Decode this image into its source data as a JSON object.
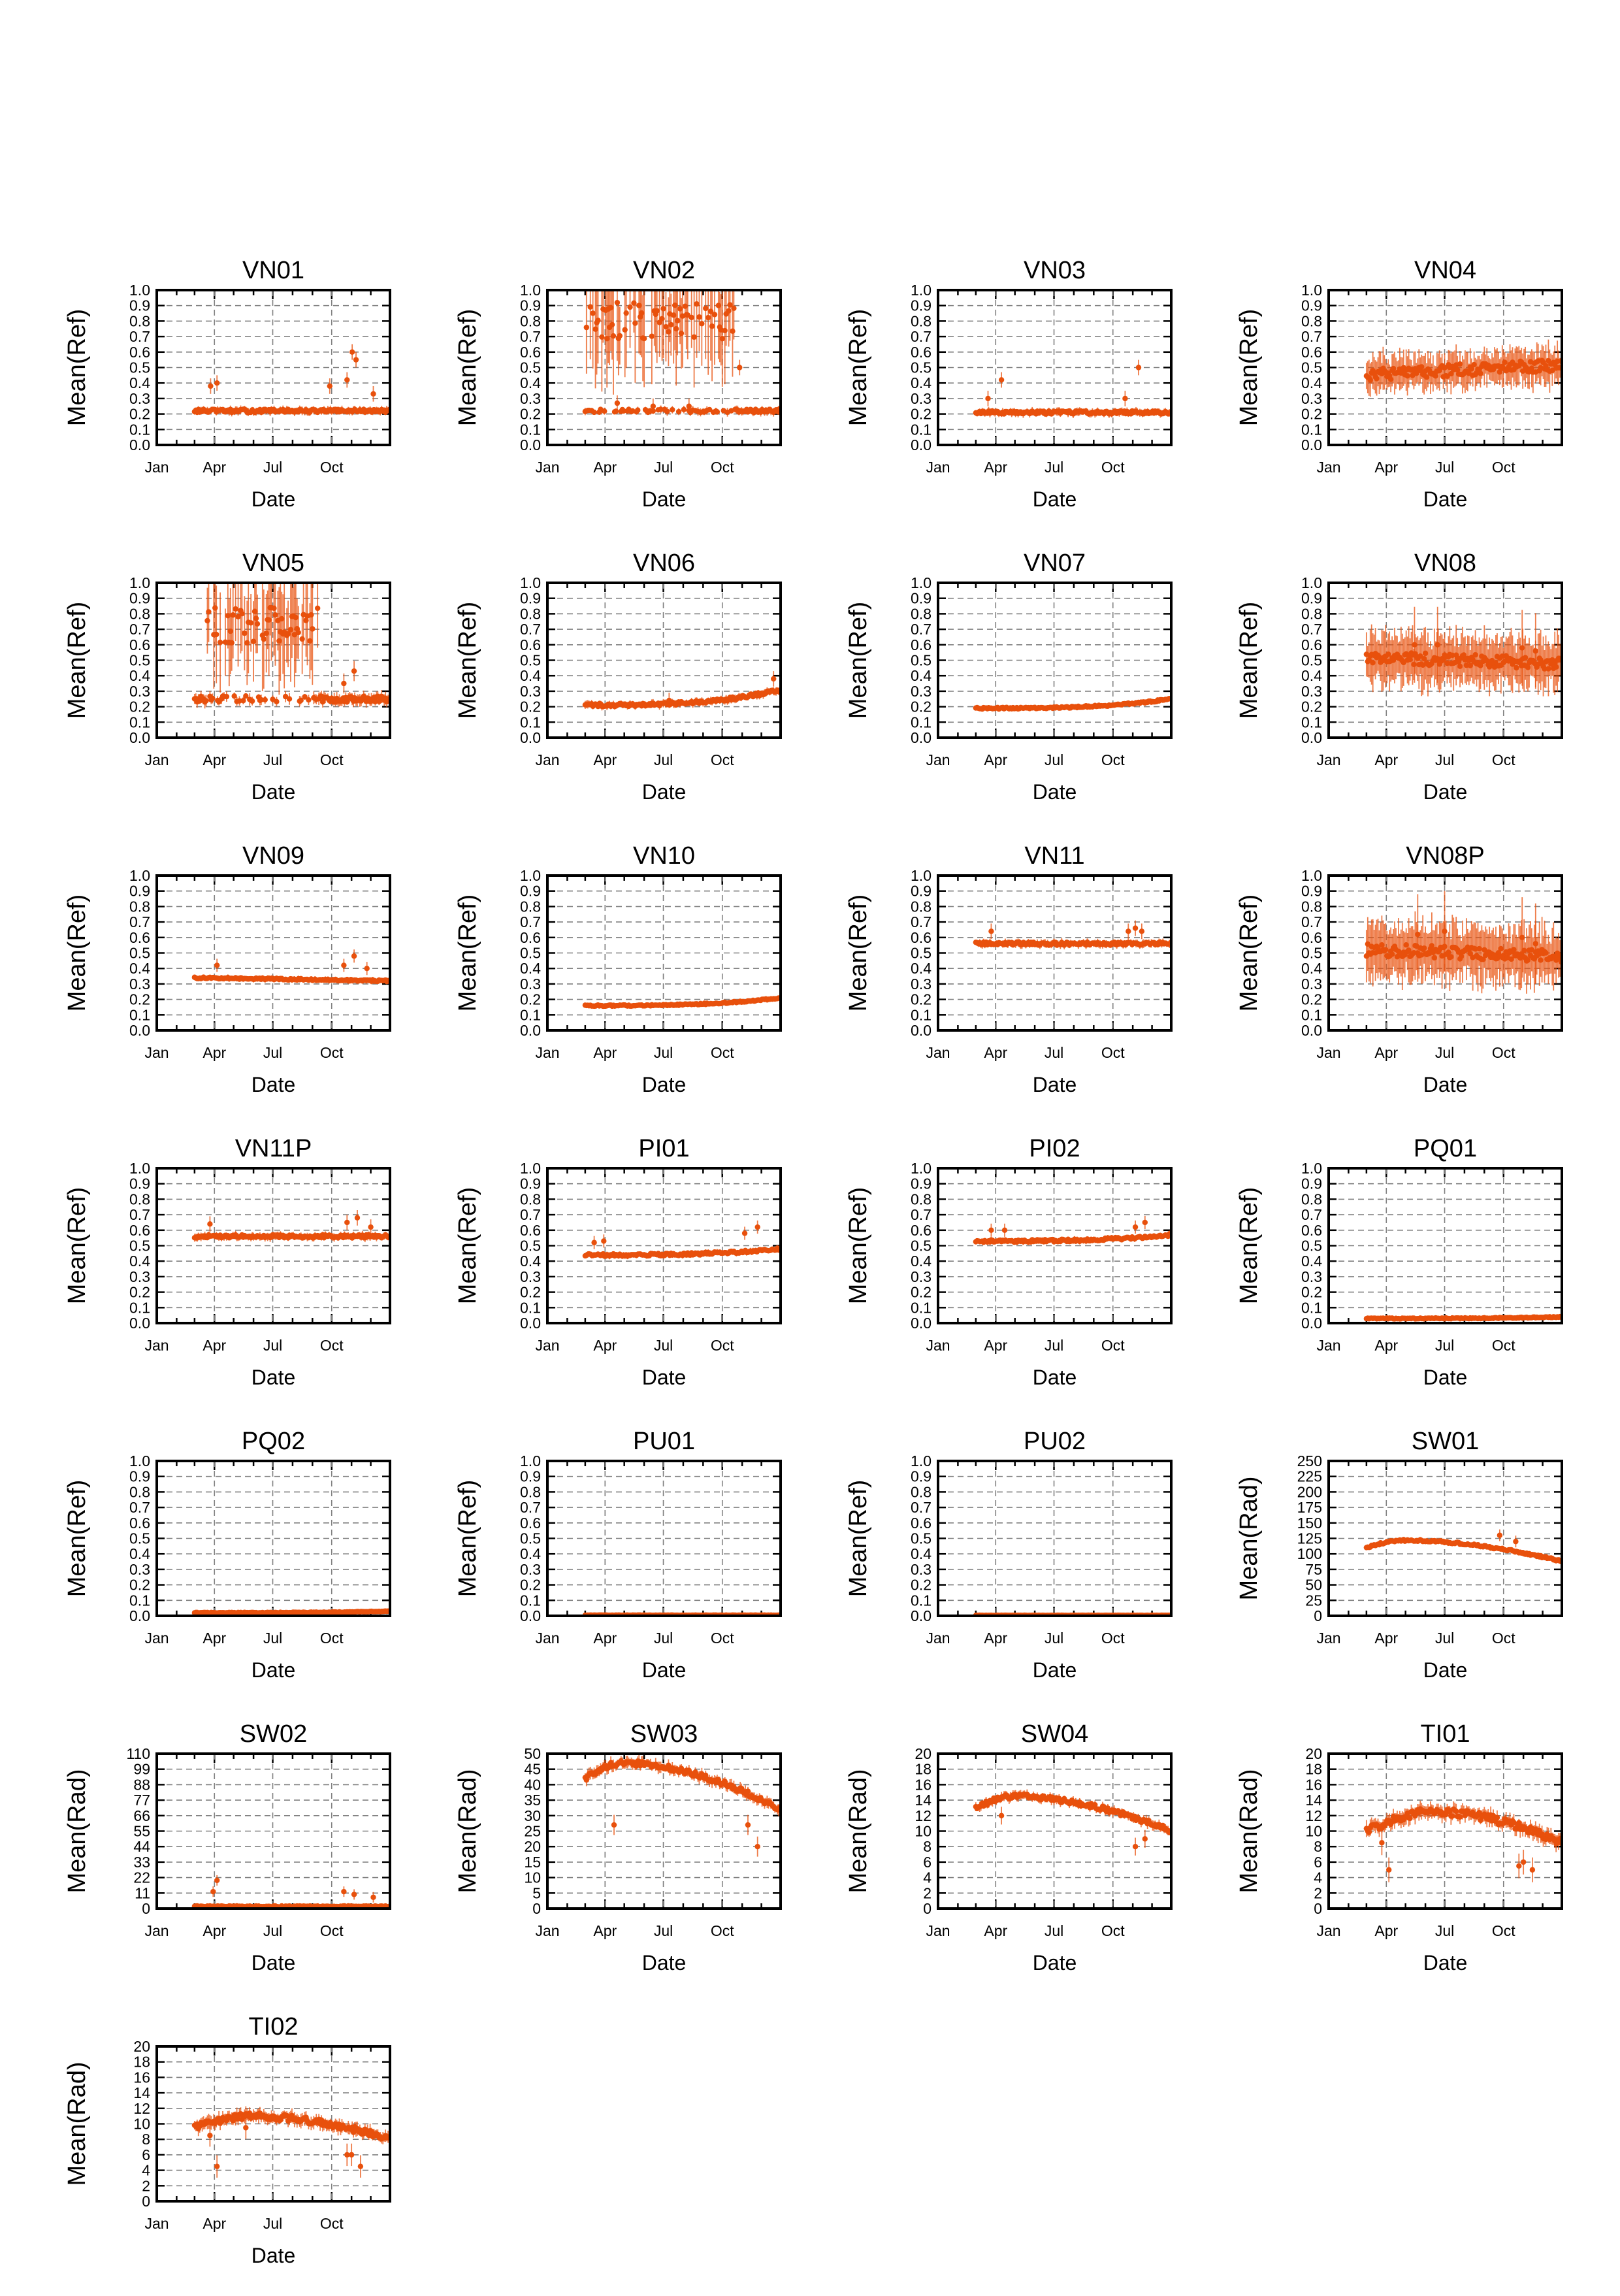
{
  "figure": {
    "xlabel": "Date",
    "x_ticks": [
      "Jan",
      "Apr",
      "Jul",
      "Oct"
    ],
    "x_tick_dates": [
      "2013-01-01",
      "2013-04-01",
      "2013-07-01",
      "2013-10-01"
    ],
    "series_color": "#e8500c",
    "grid": true,
    "grid_style": "dashed",
    "marker": "dot with vertical error bar"
  },
  "chart_data": [
    {
      "type": "scatter",
      "title": "VN01",
      "xlabel": "Date",
      "ylabel": "Mean(Ref)",
      "ylim": [
        0,
        1.0
      ],
      "xlim": [
        "2013-01-01",
        "2013-12-31"
      ],
      "series": [
        {
          "kind": "flat",
          "x_start": "2013-03-01",
          "x_end": "2013-12-31",
          "base": 0.22,
          "end": 0.22,
          "jitter": 0.01,
          "err": 0.02,
          "outliers": [
            {
              "x": "2013-03-26",
              "y": 0.38
            },
            {
              "x": "2013-04-05",
              "y": 0.4
            },
            {
              "x": "2013-09-28",
              "y": 0.38
            },
            {
              "x": "2013-10-25",
              "y": 0.42
            },
            {
              "x": "2013-11-02",
              "y": 0.6
            },
            {
              "x": "2013-11-08",
              "y": 0.55
            },
            {
              "x": "2013-12-05",
              "y": 0.33
            }
          ]
        }
      ]
    },
    {
      "type": "scatter",
      "title": "VN02",
      "xlabel": "Date",
      "ylabel": "Mean(Ref)",
      "ylim": [
        0,
        1.0
      ],
      "xlim": [
        "2013-01-01",
        "2013-12-31"
      ],
      "series": [
        {
          "kind": "band",
          "x_start": "2013-03-01",
          "x_end": "2013-12-31",
          "base": 0.22,
          "end": 0.22,
          "jitter": 0.01,
          "err": 0.02,
          "band_start": "2013-03-01",
          "band_end": "2013-10-20",
          "band_center": 0.8,
          "band_spread": 0.12,
          "band_err": 0.3,
          "outliers": [
            {
              "x": "2013-04-20",
              "y": 0.27
            },
            {
              "x": "2013-06-15",
              "y": 0.25
            },
            {
              "x": "2013-08-10",
              "y": 0.25
            },
            {
              "x": "2013-10-28",
              "y": 0.5
            }
          ]
        }
      ]
    },
    {
      "type": "scatter",
      "title": "VN03",
      "xlabel": "Date",
      "ylabel": "Mean(Ref)",
      "ylim": [
        0,
        1.0
      ],
      "xlim": [
        "2013-01-01",
        "2013-12-31"
      ],
      "series": [
        {
          "kind": "flat",
          "x_start": "2013-03-01",
          "x_end": "2013-12-31",
          "base": 0.21,
          "end": 0.21,
          "jitter": 0.01,
          "err": 0.02,
          "outliers": [
            {
              "x": "2013-03-20",
              "y": 0.3
            },
            {
              "x": "2013-04-10",
              "y": 0.42
            },
            {
              "x": "2013-10-20",
              "y": 0.3
            },
            {
              "x": "2013-11-10",
              "y": 0.5
            }
          ]
        }
      ]
    },
    {
      "type": "scatter",
      "title": "VN04",
      "xlabel": "Date",
      "ylabel": "Mean(Ref)",
      "ylim": [
        0,
        1.0
      ],
      "xlim": [
        "2013-01-01",
        "2013-12-31"
      ],
      "series": [
        {
          "kind": "flat",
          "x_start": "2013-03-01",
          "x_end": "2013-12-31",
          "base": 0.45,
          "end": 0.52,
          "jitter": 0.04,
          "err": 0.1,
          "outliers": []
        }
      ]
    },
    {
      "type": "scatter",
      "title": "VN05",
      "xlabel": "Date",
      "ylabel": "Mean(Ref)",
      "ylim": [
        0,
        1.0
      ],
      "xlim": [
        "2013-01-01",
        "2013-12-31"
      ],
      "series": [
        {
          "kind": "band",
          "x_start": "2013-03-01",
          "x_end": "2013-12-31",
          "base": 0.25,
          "end": 0.25,
          "jitter": 0.02,
          "err": 0.03,
          "band_start": "2013-03-20",
          "band_end": "2013-09-10",
          "band_center": 0.72,
          "band_spread": 0.12,
          "band_err": 0.28,
          "outliers": [
            {
              "x": "2013-10-20",
              "y": 0.35
            },
            {
              "x": "2013-11-05",
              "y": 0.43
            }
          ]
        }
      ]
    },
    {
      "type": "scatter",
      "title": "VN06",
      "xlabel": "Date",
      "ylabel": "Mean(Ref)",
      "ylim": [
        0,
        1.0
      ],
      "xlim": [
        "2013-01-01",
        "2013-12-31"
      ],
      "series": [
        {
          "kind": "rise",
          "x_start": "2013-03-01",
          "x_end": "2013-12-31",
          "base": 0.21,
          "end": 0.31,
          "jitter": 0.01,
          "err": 0.02,
          "outliers": [
            {
              "x": "2013-07-10",
              "y": 0.24
            },
            {
              "x": "2013-12-20",
              "y": 0.38
            }
          ]
        }
      ]
    },
    {
      "type": "scatter",
      "title": "VN07",
      "xlabel": "Date",
      "ylabel": "Mean(Ref)",
      "ylim": [
        0,
        1.0
      ],
      "xlim": [
        "2013-01-01",
        "2013-12-31"
      ],
      "series": [
        {
          "kind": "rise",
          "x_start": "2013-03-01",
          "x_end": "2013-12-31",
          "base": 0.19,
          "end": 0.25,
          "jitter": 0.005,
          "err": 0.01,
          "outliers": []
        }
      ]
    },
    {
      "type": "scatter",
      "title": "VN08",
      "xlabel": "Date",
      "ylabel": "Mean(Ref)",
      "ylim": [
        0,
        1.0
      ],
      "xlim": [
        "2013-01-01",
        "2013-12-31"
      ],
      "series": [
        {
          "kind": "flat",
          "x_start": "2013-03-01",
          "x_end": "2013-12-31",
          "base": 0.52,
          "end": 0.48,
          "jitter": 0.04,
          "err": 0.15,
          "outliers": [
            {
              "x": "2013-05-15",
              "y": 0.6
            },
            {
              "x": "2013-06-20",
              "y": 0.6
            },
            {
              "x": "2013-10-30",
              "y": 0.58
            },
            {
              "x": "2013-11-20",
              "y": 0.56
            }
          ]
        }
      ]
    },
    {
      "type": "scatter",
      "title": "VN09",
      "xlabel": "Date",
      "ylabel": "Mean(Ref)",
      "ylim": [
        0,
        1.0
      ],
      "xlim": [
        "2013-01-01",
        "2013-12-31"
      ],
      "series": [
        {
          "kind": "flat",
          "x_start": "2013-03-01",
          "x_end": "2013-12-31",
          "base": 0.34,
          "end": 0.32,
          "jitter": 0.005,
          "err": 0.015,
          "outliers": [
            {
              "x": "2013-04-05",
              "y": 0.42
            },
            {
              "x": "2013-10-20",
              "y": 0.42
            },
            {
              "x": "2013-11-05",
              "y": 0.48
            },
            {
              "x": "2013-11-25",
              "y": 0.4
            }
          ]
        }
      ]
    },
    {
      "type": "scatter",
      "title": "VN10",
      "xlabel": "Date",
      "ylabel": "Mean(Ref)",
      "ylim": [
        0,
        1.0
      ],
      "xlim": [
        "2013-01-01",
        "2013-12-31"
      ],
      "series": [
        {
          "kind": "rise",
          "x_start": "2013-03-01",
          "x_end": "2013-12-31",
          "base": 0.16,
          "end": 0.21,
          "jitter": 0.004,
          "err": 0.008,
          "outliers": []
        }
      ]
    },
    {
      "type": "scatter",
      "title": "VN11",
      "xlabel": "Date",
      "ylabel": "Mean(Ref)",
      "ylim": [
        0,
        1.0
      ],
      "xlim": [
        "2013-01-01",
        "2013-12-31"
      ],
      "series": [
        {
          "kind": "flat",
          "x_start": "2013-03-01",
          "x_end": "2013-12-31",
          "base": 0.56,
          "end": 0.56,
          "jitter": 0.01,
          "err": 0.02,
          "outliers": [
            {
              "x": "2013-03-25",
              "y": 0.64
            },
            {
              "x": "2013-10-25",
              "y": 0.64
            },
            {
              "x": "2013-11-05",
              "y": 0.66
            },
            {
              "x": "2013-11-15",
              "y": 0.64
            }
          ]
        }
      ]
    },
    {
      "type": "scatter",
      "title": "VN08P",
      "xlabel": "Date",
      "ylabel": "Mean(Ref)",
      "ylim": [
        0,
        1.0
      ],
      "xlim": [
        "2013-01-01",
        "2013-12-31"
      ],
      "series": [
        {
          "kind": "flat",
          "x_start": "2013-03-01",
          "x_end": "2013-12-31",
          "base": 0.52,
          "end": 0.48,
          "jitter": 0.04,
          "err": 0.16,
          "outliers": [
            {
              "x": "2013-05-20",
              "y": 0.62
            },
            {
              "x": "2013-07-01",
              "y": 0.64
            },
            {
              "x": "2013-10-30",
              "y": 0.6
            },
            {
              "x": "2013-11-20",
              "y": 0.56
            }
          ]
        }
      ]
    },
    {
      "type": "scatter",
      "title": "VN11P",
      "xlabel": "Date",
      "ylabel": "Mean(Ref)",
      "ylim": [
        0,
        1.0
      ],
      "xlim": [
        "2013-01-01",
        "2013-12-31"
      ],
      "series": [
        {
          "kind": "flat",
          "x_start": "2013-03-01",
          "x_end": "2013-12-31",
          "base": 0.56,
          "end": 0.56,
          "jitter": 0.01,
          "err": 0.02,
          "outliers": [
            {
              "x": "2013-03-25",
              "y": 0.64
            },
            {
              "x": "2013-10-25",
              "y": 0.65
            },
            {
              "x": "2013-11-10",
              "y": 0.68
            },
            {
              "x": "2013-12-01",
              "y": 0.62
            }
          ]
        }
      ]
    },
    {
      "type": "scatter",
      "title": "PI01",
      "xlabel": "Date",
      "ylabel": "Mean(Ref)",
      "ylim": [
        0,
        1.0
      ],
      "xlim": [
        "2013-01-01",
        "2013-12-31"
      ],
      "series": [
        {
          "kind": "rise",
          "x_start": "2013-03-01",
          "x_end": "2013-12-31",
          "base": 0.44,
          "end": 0.48,
          "jitter": 0.008,
          "err": 0.015,
          "outliers": [
            {
              "x": "2013-03-15",
              "y": 0.52
            },
            {
              "x": "2013-03-30",
              "y": 0.53
            },
            {
              "x": "2013-11-05",
              "y": 0.58
            },
            {
              "x": "2013-11-25",
              "y": 0.62
            }
          ]
        }
      ]
    },
    {
      "type": "scatter",
      "title": "PI02",
      "xlabel": "Date",
      "ylabel": "Mean(Ref)",
      "ylim": [
        0,
        1.0
      ],
      "xlim": [
        "2013-01-01",
        "2013-12-31"
      ],
      "series": [
        {
          "kind": "rise",
          "x_start": "2013-03-01",
          "x_end": "2013-12-31",
          "base": 0.53,
          "end": 0.57,
          "jitter": 0.008,
          "err": 0.015,
          "outliers": [
            {
              "x": "2013-03-25",
              "y": 0.6
            },
            {
              "x": "2013-04-15",
              "y": 0.6
            },
            {
              "x": "2013-11-05",
              "y": 0.62
            },
            {
              "x": "2013-11-20",
              "y": 0.65
            }
          ]
        }
      ]
    },
    {
      "type": "scatter",
      "title": "PQ01",
      "xlabel": "Date",
      "ylabel": "Mean(Ref)",
      "ylim": [
        0,
        1.0
      ],
      "xlim": [
        "2013-01-01",
        "2013-12-31"
      ],
      "series": [
        {
          "kind": "rise",
          "x_start": "2013-03-01",
          "x_end": "2013-12-31",
          "base": 0.03,
          "end": 0.04,
          "jitter": 0.003,
          "err": 0.005,
          "outliers": []
        }
      ]
    },
    {
      "type": "scatter",
      "title": "PQ02",
      "xlabel": "Date",
      "ylabel": "Mean(Ref)",
      "ylim": [
        0,
        1.0
      ],
      "xlim": [
        "2013-01-01",
        "2013-12-31"
      ],
      "series": [
        {
          "kind": "rise",
          "x_start": "2013-03-01",
          "x_end": "2013-12-31",
          "base": 0.02,
          "end": 0.03,
          "jitter": 0.002,
          "err": 0.004,
          "outliers": []
        }
      ]
    },
    {
      "type": "scatter",
      "title": "PU01",
      "xlabel": "Date",
      "ylabel": "Mean(Ref)",
      "ylim": [
        0,
        1.0
      ],
      "xlim": [
        "2013-01-01",
        "2013-12-31"
      ],
      "series": [
        {
          "kind": "flat",
          "x_start": "2013-03-01",
          "x_end": "2013-12-31",
          "base": 0.004,
          "end": 0.004,
          "jitter": 0.001,
          "err": 0.002,
          "outliers": []
        }
      ]
    },
    {
      "type": "scatter",
      "title": "PU02",
      "xlabel": "Date",
      "ylabel": "Mean(Ref)",
      "ylim": [
        0,
        1.0
      ],
      "xlim": [
        "2013-01-01",
        "2013-12-31"
      ],
      "series": [
        {
          "kind": "flat",
          "x_start": "2013-03-01",
          "x_end": "2013-12-31",
          "base": 0.003,
          "end": 0.003,
          "jitter": 0.001,
          "err": 0.002,
          "outliers": []
        }
      ]
    },
    {
      "type": "scatter",
      "title": "SW01",
      "xlabel": "Date",
      "ylabel": "Mean(Rad)",
      "ylim": [
        0,
        250
      ],
      "xlim": [
        "2013-01-01",
        "2013-12-31"
      ],
      "series": [
        {
          "kind": "hump",
          "x_start": "2013-03-01",
          "x_end": "2013-12-31",
          "base": 110,
          "peak": 122,
          "peak_at": 0.2,
          "end": 88,
          "jitter": 1.5,
          "err": 3,
          "outliers": [
            {
              "x": "2013-09-25",
              "y": 130
            },
            {
              "x": "2013-10-20",
              "y": 120
            }
          ]
        }
      ]
    },
    {
      "type": "scatter",
      "title": "SW02",
      "xlabel": "Date",
      "ylabel": "Mean(Rad)",
      "ylim": [
        0,
        110
      ],
      "xlim": [
        "2013-01-01",
        "2013-12-31"
      ],
      "series": [
        {
          "kind": "flat",
          "x_start": "2013-03-01",
          "x_end": "2013-12-31",
          "base": 1.5,
          "end": 1.5,
          "jitter": 0.4,
          "err": 1,
          "outliers": [
            {
              "x": "2013-04-05",
              "y": 20
            },
            {
              "x": "2013-03-30",
              "y": 12
            },
            {
              "x": "2013-10-20",
              "y": 12
            },
            {
              "x": "2013-11-05",
              "y": 10
            },
            {
              "x": "2013-12-05",
              "y": 8
            }
          ]
        }
      ]
    },
    {
      "type": "scatter",
      "title": "SW03",
      "xlabel": "Date",
      "ylabel": "Mean(Rad)",
      "ylim": [
        0,
        50
      ],
      "xlim": [
        "2013-01-01",
        "2013-12-31"
      ],
      "series": [
        {
          "kind": "hump",
          "x_start": "2013-03-01",
          "x_end": "2013-12-31",
          "base": 42,
          "peak": 47,
          "peak_at": 0.2,
          "end": 32,
          "jitter": 0.8,
          "err": 1.5,
          "outliers": [
            {
              "x": "2013-04-15",
              "y": 27
            },
            {
              "x": "2013-11-10",
              "y": 27
            },
            {
              "x": "2013-11-25",
              "y": 20
            }
          ]
        }
      ]
    },
    {
      "type": "scatter",
      "title": "SW04",
      "xlabel": "Date",
      "ylabel": "Mean(Rad)",
      "ylim": [
        0,
        20
      ],
      "xlim": [
        "2013-01-01",
        "2013-12-31"
      ],
      "series": [
        {
          "kind": "hump",
          "x_start": "2013-03-01",
          "x_end": "2013-12-31",
          "base": 13,
          "peak": 14.5,
          "peak_at": 0.2,
          "end": 10,
          "jitter": 0.3,
          "err": 0.5,
          "outliers": [
            {
              "x": "2013-04-10",
              "y": 12
            },
            {
              "x": "2013-11-05",
              "y": 8
            },
            {
              "x": "2013-11-20",
              "y": 9
            }
          ]
        }
      ]
    },
    {
      "type": "scatter",
      "title": "TI01",
      "xlabel": "Date",
      "ylabel": "Mean(Rad)",
      "ylim": [
        0,
        20
      ],
      "xlim": [
        "2013-01-01",
        "2013-12-31"
      ],
      "series": [
        {
          "kind": "hump",
          "x_start": "2013-03-01",
          "x_end": "2013-12-31",
          "base": 10,
          "peak": 12.5,
          "peak_at": 0.35,
          "end": 8.5,
          "jitter": 0.5,
          "err": 0.8,
          "outliers": [
            {
              "x": "2013-03-25",
              "y": 8.5
            },
            {
              "x": "2013-04-05",
              "y": 5
            },
            {
              "x": "2013-10-25",
              "y": 5.5
            },
            {
              "x": "2013-11-01",
              "y": 6
            },
            {
              "x": "2013-11-15",
              "y": 5
            }
          ]
        }
      ]
    },
    {
      "type": "scatter",
      "title": "TI02",
      "xlabel": "Date",
      "ylabel": "Mean(Rad)",
      "ylim": [
        0,
        20
      ],
      "xlim": [
        "2013-01-01",
        "2013-12-31"
      ],
      "series": [
        {
          "kind": "hump",
          "x_start": "2013-03-01",
          "x_end": "2013-12-31",
          "base": 9.5,
          "peak": 11,
          "peak_at": 0.3,
          "end": 8,
          "jitter": 0.4,
          "err": 0.7,
          "outliers": [
            {
              "x": "2013-03-25",
              "y": 8.5
            },
            {
              "x": "2013-04-05",
              "y": 4.5
            },
            {
              "x": "2013-05-20",
              "y": 9.5
            },
            {
              "x": "2013-10-25",
              "y": 6
            },
            {
              "x": "2013-11-01",
              "y": 6
            },
            {
              "x": "2013-11-15",
              "y": 4.5
            }
          ]
        }
      ]
    }
  ]
}
